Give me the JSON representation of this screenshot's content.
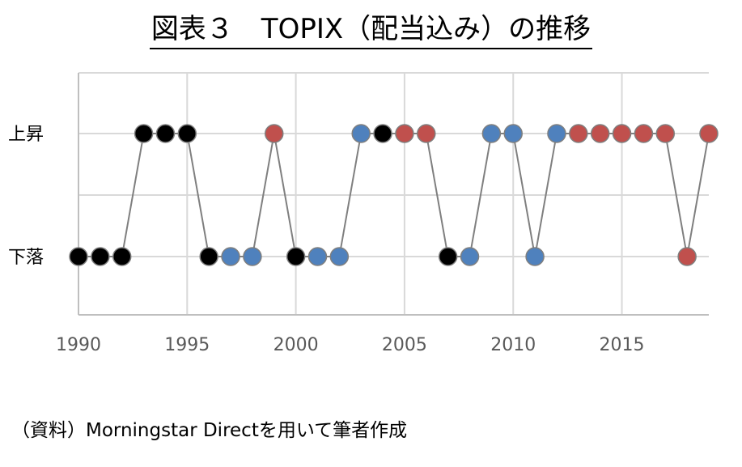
{
  "chart_data": {
    "type": "line",
    "title": "図表３　TOPIX（配当込み）の推移",
    "xlabel": "",
    "ylabel": "",
    "xlim": [
      1990,
      2019
    ],
    "x_ticks": [
      "1990",
      "1995",
      "2000",
      "2005",
      "2010",
      "2015"
    ],
    "y_categories": [
      "上昇",
      "下落"
    ],
    "grid": true,
    "legend": "none",
    "point_colors": {
      "black": "#000000",
      "blue": "#4f81bd",
      "red": "#c0504d"
    },
    "line_color": "#7f7f7f",
    "points": [
      {
        "x": 1990,
        "y": "下落",
        "color": "black"
      },
      {
        "x": 1991,
        "y": "下落",
        "color": "black"
      },
      {
        "x": 1992,
        "y": "下落",
        "color": "black"
      },
      {
        "x": 1993,
        "y": "上昇",
        "color": "black"
      },
      {
        "x": 1994,
        "y": "上昇",
        "color": "black"
      },
      {
        "x": 1995,
        "y": "上昇",
        "color": "black"
      },
      {
        "x": 1996,
        "y": "下落",
        "color": "black"
      },
      {
        "x": 1997,
        "y": "下落",
        "color": "blue"
      },
      {
        "x": 1998,
        "y": "下落",
        "color": "blue"
      },
      {
        "x": 1999,
        "y": "上昇",
        "color": "red"
      },
      {
        "x": 2000,
        "y": "下落",
        "color": "black"
      },
      {
        "x": 2001,
        "y": "下落",
        "color": "blue"
      },
      {
        "x": 2002,
        "y": "下落",
        "color": "blue"
      },
      {
        "x": 2003,
        "y": "上昇",
        "color": "blue"
      },
      {
        "x": 2004,
        "y": "上昇",
        "color": "black"
      },
      {
        "x": 2005,
        "y": "上昇",
        "color": "red"
      },
      {
        "x": 2006,
        "y": "上昇",
        "color": "red"
      },
      {
        "x": 2007,
        "y": "下落",
        "color": "black"
      },
      {
        "x": 2008,
        "y": "下落",
        "color": "blue"
      },
      {
        "x": 2009,
        "y": "上昇",
        "color": "blue"
      },
      {
        "x": 2010,
        "y": "上昇",
        "color": "blue"
      },
      {
        "x": 2011,
        "y": "下落",
        "color": "blue"
      },
      {
        "x": 2012,
        "y": "上昇",
        "color": "blue"
      },
      {
        "x": 2013,
        "y": "上昇",
        "color": "red"
      },
      {
        "x": 2014,
        "y": "上昇",
        "color": "red"
      },
      {
        "x": 2015,
        "y": "上昇",
        "color": "red"
      },
      {
        "x": 2016,
        "y": "上昇",
        "color": "red"
      },
      {
        "x": 2017,
        "y": "上昇",
        "color": "red"
      },
      {
        "x": 2018,
        "y": "下落",
        "color": "red"
      },
      {
        "x": 2019,
        "y": "上昇",
        "color": "red"
      }
    ]
  },
  "source_note": "（資料）Morningstar Directを用いて筆者作成"
}
